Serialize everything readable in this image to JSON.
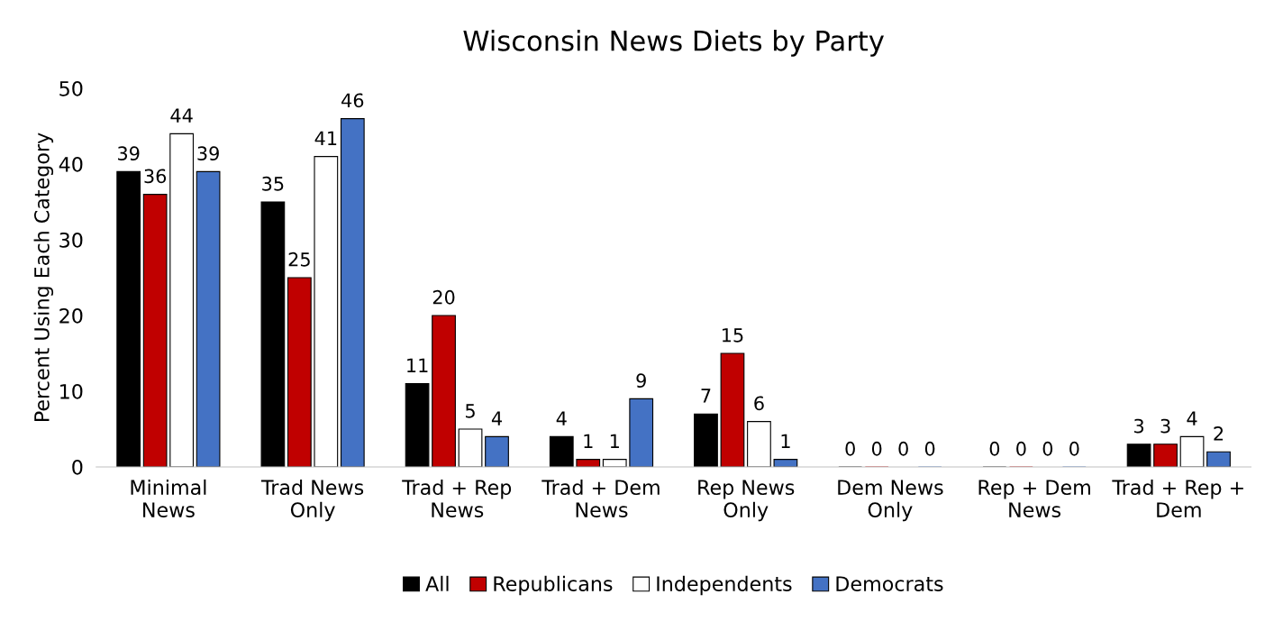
{
  "chart_data": {
    "type": "bar",
    "title": "Wisconsin News Diets by Party",
    "ylabel": "Percent Using Each Category",
    "categories": [
      "Minimal\nNews",
      "Trad News\nOnly",
      "Trad + Rep\nNews",
      "Trad + Dem\nNews",
      "Rep News\nOnly",
      "Dem News\nOnly",
      "Rep + Dem\nNews",
      "Trad + Rep +\nDem"
    ],
    "series": [
      {
        "name": "All",
        "color": "#000000",
        "values": [
          39,
          35,
          11,
          4,
          7,
          0,
          0,
          3
        ]
      },
      {
        "name": "Republicans",
        "color": "#c00000",
        "values": [
          36,
          25,
          20,
          1,
          15,
          0,
          0,
          3
        ]
      },
      {
        "name": "Independents",
        "color": "#ffffff",
        "values": [
          44,
          41,
          5,
          1,
          6,
          0,
          0,
          4
        ]
      },
      {
        "name": "Democrats",
        "color": "#4472c4",
        "values": [
          39,
          46,
          4,
          9,
          1,
          0,
          0,
          2
        ]
      }
    ],
    "ylim": [
      0,
      50
    ],
    "yticks": [
      0,
      10,
      20,
      30,
      40,
      50
    ],
    "grid": false,
    "legend": "bottom",
    "data_labels": true
  }
}
